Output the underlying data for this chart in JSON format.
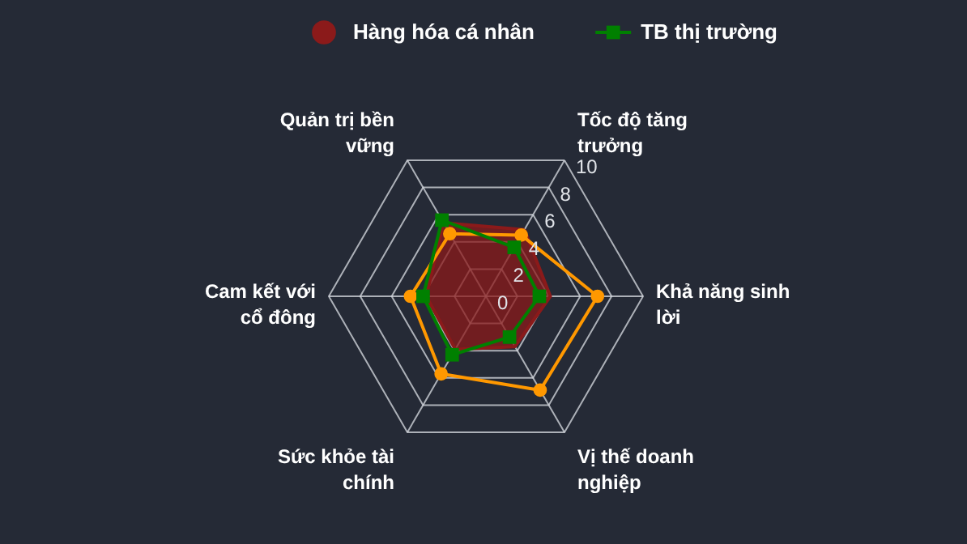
{
  "chart_data": {
    "type": "radar",
    "categories": [
      "Tốc độ tăng trưởng",
      "Khả năng sinh lời",
      "Vị thế doanh nghiệp",
      "Sức khỏe tài chính",
      "Cam kết với cổ đông",
      "Quản trị bền vững"
    ],
    "ylim": [
      0,
      10
    ],
    "yticks": [
      0,
      2,
      4,
      6,
      8,
      10
    ],
    "grid": true,
    "legend": "top",
    "series": [
      {
        "name": null,
        "marker": "circle",
        "color": "#ff9800",
        "values": [
          4.5,
          7.1,
          6.9,
          5.7,
          4.8,
          4.6
        ]
      },
      {
        "name": "Hàng hóa cá nhân",
        "marker": "none",
        "color": "#8b1a1a",
        "values": [
          4.9,
          4.1,
          3.7,
          3.9,
          3.8,
          5.4
        ]
      },
      {
        "name": "TB thị trường",
        "marker": "square",
        "color": "#008000",
        "values": [
          3.6,
          3.4,
          3.0,
          4.3,
          4.0,
          5.6
        ]
      }
    ]
  }
}
